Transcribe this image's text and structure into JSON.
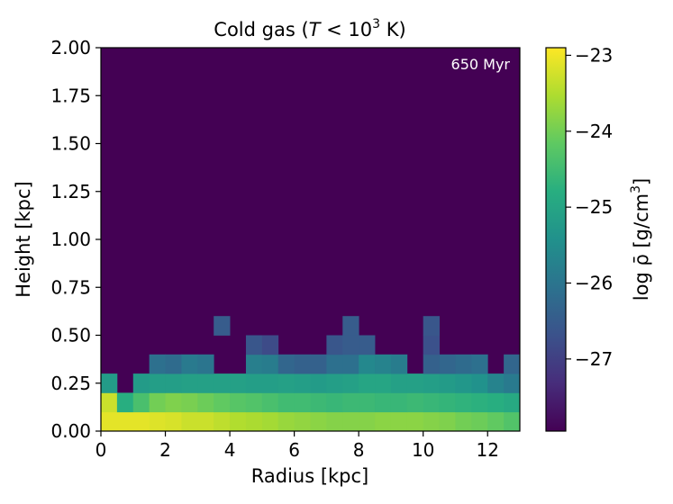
{
  "chart_data": {
    "type": "heatmap",
    "title": "Cold gas (",
    "title_italic": "T",
    "title_rest": " < 10",
    "title_sup": "3",
    "title_end": " K)",
    "annotation": "650 Myr",
    "xlabel": "Radius [kpc]",
    "ylabel": "Height [kpc]",
    "colorbar_label": "log ρ̄ [g/cm",
    "colorbar_label_sup": "3",
    "colorbar_label_end": "]",
    "xlim": [
      0,
      13
    ],
    "ylim": [
      0,
      2
    ],
    "x_ticks": [
      0,
      2,
      4,
      6,
      8,
      10,
      12
    ],
    "x_tick_labels": [
      "0",
      "2",
      "4",
      "6",
      "8",
      "10",
      "12"
    ],
    "y_ticks": [
      0,
      0.25,
      0.5,
      0.75,
      1.0,
      1.25,
      1.5,
      1.75,
      2.0
    ],
    "y_tick_labels": [
      "0.00",
      "0.25",
      "0.50",
      "0.75",
      "1.00",
      "1.25",
      "1.50",
      "1.75",
      "2.00"
    ],
    "colorbar_ticks": [
      -23,
      -24,
      -25,
      -26,
      -27
    ],
    "colorbar_tick_labels": [
      "−23",
      "−24",
      "−25",
      "−26",
      "−27"
    ],
    "colorbar_range": [
      -27.95,
      -22.9
    ],
    "background_value": -27.95,
    "grid": false,
    "bin_width_kpc": 0.5,
    "bin_height_kpc": 0.1,
    "rows": [
      {
        "y0": 0.0,
        "values": [
          -23.1,
          -23.1,
          -23.1,
          -23.15,
          -23.2,
          -23.3,
          -23.3,
          -23.4,
          -23.5,
          -23.55,
          -23.6,
          -23.7,
          -23.75,
          -23.8,
          -23.85,
          -23.85,
          -23.85,
          -23.8,
          -23.8,
          -23.8,
          -23.85,
          -23.9,
          -24.0,
          -24.05,
          -24.15,
          -24.3,
          -24.9
        ]
      },
      {
        "y0": 0.1,
        "values": [
          -23.3,
          -24.8,
          -24.4,
          -24.0,
          -23.9,
          -23.95,
          -24.05,
          -24.15,
          -24.25,
          -24.3,
          -24.4,
          -24.5,
          -24.5,
          -24.55,
          -24.6,
          -24.55,
          -24.55,
          -24.6,
          -24.6,
          -24.55,
          -24.6,
          -24.65,
          -24.7,
          -24.75,
          -24.8,
          -24.9,
          -27.95
        ]
      },
      {
        "y0": 0.2,
        "values": [
          -25.2,
          -27.95,
          -25.2,
          -25.15,
          -25.15,
          -25.1,
          -25.1,
          -25.1,
          -25.1,
          -25.15,
          -25.15,
          -25.1,
          -25.15,
          -25.2,
          -25.15,
          -25.1,
          -25.0,
          -25.0,
          -25.1,
          -25.1,
          -25.15,
          -25.2,
          -25.3,
          -25.4,
          -25.7,
          -25.9,
          -27.95
        ]
      },
      {
        "y0": 0.3,
        "values": [
          -27.95,
          -27.95,
          -27.95,
          -26.1,
          -26.2,
          -25.9,
          -26.0,
          -27.95,
          -27.95,
          -25.8,
          -25.85,
          -26.3,
          -26.4,
          -26.4,
          -26.1,
          -26.1,
          -25.6,
          -25.7,
          -25.85,
          -27.95,
          -26.4,
          -26.3,
          -26.2,
          -26.1,
          -27.95,
          -26.3,
          -27.95
        ]
      },
      {
        "y0": 0.4,
        "values": [
          -27.95,
          -27.95,
          -27.95,
          -27.95,
          -27.95,
          -27.95,
          -27.95,
          -27.95,
          -27.95,
          -26.6,
          -26.8,
          -27.95,
          -27.95,
          -27.95,
          -26.6,
          -26.5,
          -26.5,
          -27.95,
          -27.95,
          -27.95,
          -26.7,
          -27.95,
          -27.95,
          -27.95,
          -27.95,
          -27.95,
          -27.95
        ]
      },
      {
        "y0": 0.5,
        "values": [
          -27.95,
          -27.95,
          -27.95,
          -27.95,
          -27.95,
          -27.95,
          -27.95,
          -26.5,
          -27.95,
          -27.95,
          -27.95,
          -27.95,
          -27.95,
          -27.95,
          -27.95,
          -26.5,
          -27.95,
          -27.95,
          -27.95,
          -27.95,
          -26.6,
          -27.95,
          -27.95,
          -27.95,
          -27.95,
          -27.95,
          -27.95
        ]
      }
    ]
  }
}
